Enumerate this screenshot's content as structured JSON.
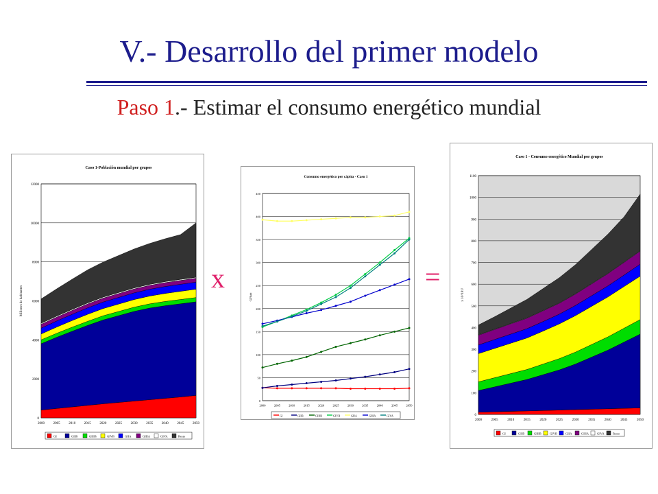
{
  "slide": {
    "title": "V.- Desarrollo del primer modelo",
    "subtitle_prefix": "Paso 1",
    "subtitle_rest": ".- Estimar el consumo energético mundial",
    "op_multiply": "x",
    "op_equals": "="
  },
  "colors": {
    "title": "#1c1c8c",
    "accent": "#d02020",
    "operator": "#e0206a"
  },
  "chart_data": [
    {
      "type": "area",
      "title": "Caso 1-Población mundial por grupos",
      "ylabel": "Millones de habitantes",
      "xlabel": "",
      "ylim": [
        0,
        12000
      ],
      "yticks": [
        "0",
        "2000",
        "4000",
        "6000",
        "8000",
        "10000",
        "12000"
      ],
      "x": [
        "2000",
        "2005",
        "2010",
        "2015",
        "2020",
        "2025",
        "2030",
        "2035",
        "2040",
        "2045",
        "2050"
      ],
      "stacked": true,
      "series": [
        {
          "name": "GI",
          "color": "#ff0000",
          "values": [
            400,
            480,
            560,
            640,
            720,
            790,
            860,
            930,
            1000,
            1070,
            1150
          ]
        },
        {
          "name": "GIIB",
          "color": "#000099",
          "values": [
            3400,
            3650,
            3880,
            4100,
            4300,
            4450,
            4600,
            4700,
            4750,
            4780,
            4800
          ]
        },
        {
          "name": "GIIIB",
          "color": "#00dd00",
          "values": [
            200,
            205,
            210,
            210,
            215,
            215,
            215,
            215,
            220,
            220,
            220
          ]
        },
        {
          "name": "GIVB",
          "color": "#ffff00",
          "values": [
            300,
            320,
            340,
            360,
            370,
            380,
            390,
            400,
            410,
            420,
            430
          ]
        },
        {
          "name": "GIIA",
          "color": "#0000ff",
          "values": [
            300,
            310,
            320,
            330,
            335,
            340,
            345,
            350,
            355,
            360,
            360
          ]
        },
        {
          "name": "GIIIA",
          "color": "#800080",
          "values": [
            200,
            200,
            200,
            200,
            200,
            200,
            200,
            200,
            200,
            200,
            200
          ]
        },
        {
          "name": "GIVA",
          "color": "#ffffff",
          "values": [
            50,
            50,
            50,
            50,
            50,
            50,
            50,
            50,
            50,
            50,
            50
          ]
        },
        {
          "name": "Resto",
          "color": "#333333",
          "values": [
            1250,
            1400,
            1550,
            1700,
            1800,
            1900,
            2000,
            2100,
            2200,
            2300,
            2790
          ]
        }
      ],
      "legend": "bottom"
    },
    {
      "type": "line",
      "title": "Consumo energético per cápita - Caso 1",
      "ylabel": "GJ/hab",
      "xlabel": "",
      "ylim": [
        0,
        450
      ],
      "yticks": [
        "0",
        "50",
        "100",
        "150",
        "200",
        "250",
        "300",
        "350",
        "400",
        "450"
      ],
      "x": [
        "2000",
        "2005",
        "2010",
        "2015",
        "2020",
        "2025",
        "2030",
        "2035",
        "2040",
        "2045",
        "2050"
      ],
      "series": [
        {
          "name": "GI",
          "color": "#ff0000",
          "values": [
            28,
            27,
            27,
            27,
            27,
            27,
            26,
            26,
            26,
            26,
            27
          ]
        },
        {
          "name": "GIIB",
          "color": "#000080",
          "values": [
            28,
            32,
            35,
            38,
            41,
            44,
            48,
            52,
            57,
            62,
            69
          ]
        },
        {
          "name": "GIIIB",
          "color": "#006400",
          "values": [
            72,
            80,
            87,
            95,
            106,
            117,
            125,
            133,
            142,
            150,
            158
          ]
        },
        {
          "name": "GIVB",
          "color": "#00cc44",
          "values": [
            160,
            172,
            185,
            198,
            213,
            230,
            250,
            275,
            300,
            327,
            353
          ]
        },
        {
          "name": "GIIA",
          "color": "#ffff66",
          "values": [
            393,
            390,
            390,
            392,
            394,
            396,
            398,
            398,
            400,
            402,
            410
          ]
        },
        {
          "name": "GIIIA",
          "color": "#0000cc",
          "values": [
            167,
            174,
            182,
            190,
            197,
            206,
            215,
            228,
            240,
            252,
            264
          ]
        },
        {
          "name": "GIVA",
          "color": "#008080",
          "values": [
            162,
            172,
            183,
            195,
            210,
            225,
            245,
            270,
            295,
            320,
            350
          ]
        }
      ],
      "legend": "bottom"
    },
    {
      "type": "area",
      "title": "Caso 1 - Consumo energético Mundial por grupos",
      "ylabel": "x 10^18 J",
      "xlabel": "",
      "ylim": [
        0,
        1100
      ],
      "yticks": [
        "0",
        "100",
        "200",
        "300",
        "400",
        "500",
        "600",
        "700",
        "800",
        "900",
        "1000",
        "1100"
      ],
      "x": [
        "2000",
        "2005",
        "2010",
        "2015",
        "2020",
        "2025",
        "2030",
        "2035",
        "2040",
        "2045",
        "2050"
      ],
      "stacked": true,
      "series": [
        {
          "name": "GI",
          "color": "#ff0000",
          "values": [
            10,
            12,
            14,
            16,
            18,
            20,
            22,
            24,
            26,
            28,
            30
          ]
        },
        {
          "name": "GIIB",
          "color": "#000099",
          "values": [
            100,
            115,
            130,
            145,
            165,
            185,
            210,
            240,
            270,
            305,
            340
          ]
        },
        {
          "name": "GIIIB",
          "color": "#00dd00",
          "values": [
            40,
            42,
            44,
            46,
            49,
            52,
            55,
            58,
            61,
            64,
            67
          ]
        },
        {
          "name": "GIVB",
          "color": "#ffff00",
          "values": [
            130,
            135,
            140,
            145,
            152,
            160,
            168,
            176,
            184,
            192,
            200
          ]
        },
        {
          "name": "GIIA",
          "color": "#0000ff",
          "values": [
            40,
            41,
            42,
            43,
            44,
            45,
            47,
            49,
            51,
            53,
            55
          ]
        },
        {
          "name": "GIIIA",
          "color": "#800080",
          "values": [
            45,
            46,
            47,
            48,
            49,
            50,
            52,
            54,
            56,
            58,
            60
          ]
        },
        {
          "name": "GIVA",
          "color": "#ffffff",
          "values": [
            2,
            2,
            2,
            2,
            2,
            2,
            2,
            2,
            2,
            2,
            2
          ]
        },
        {
          "name": "Resto",
          "color": "#333333",
          "values": [
            45,
            57,
            71,
            85,
            101,
            116,
            134,
            157,
            180,
            208,
            261
          ]
        }
      ],
      "legend": "bottom"
    }
  ]
}
